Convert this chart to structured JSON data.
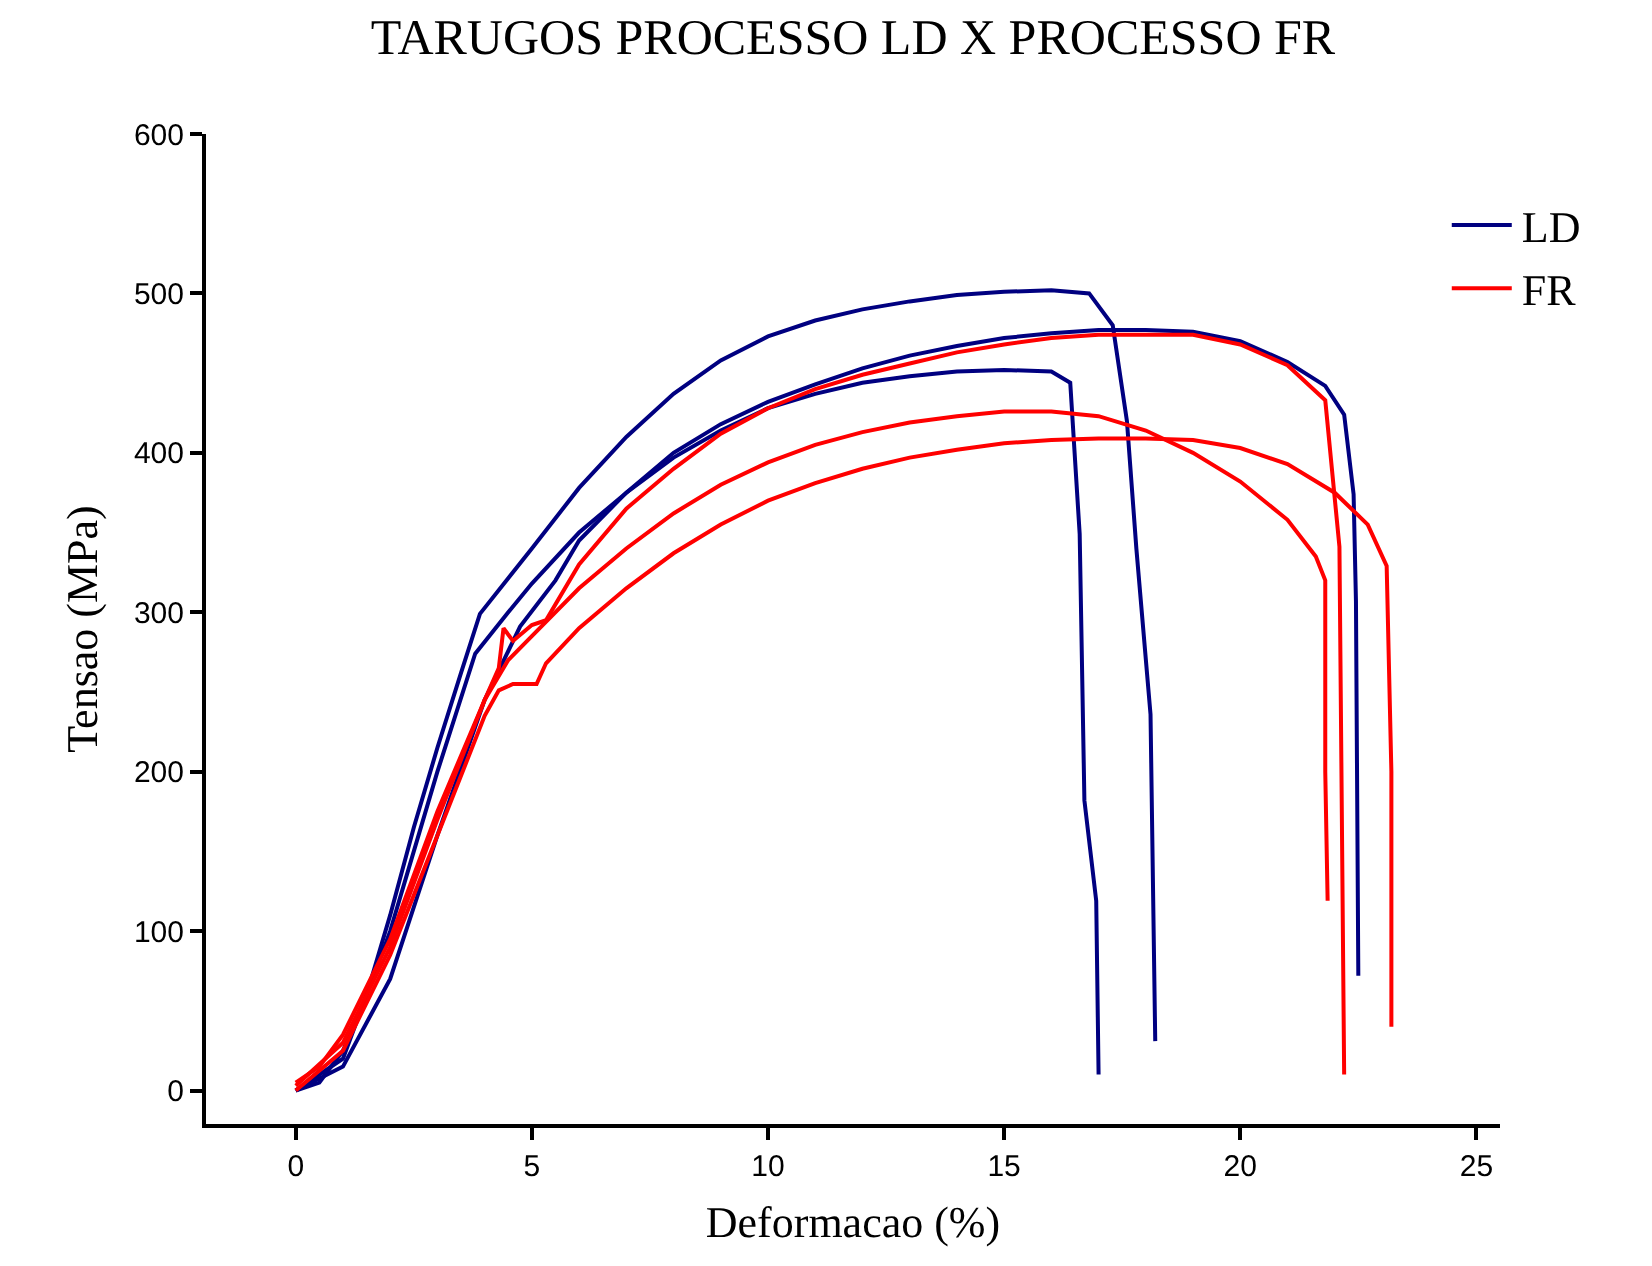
{
  "chart_data": {
    "type": "line",
    "title": "TARUGOS PROCESSO LD X PROCESSO FR",
    "xlabel": "Deformacao (%)",
    "ylabel": "Tensao (MPa)",
    "xlim": [
      -1.9,
      25.5
    ],
    "xticks": [
      0,
      5,
      10,
      15,
      20,
      25
    ],
    "ylim": [
      -21,
      600
    ],
    "yticks": [
      0,
      100,
      200,
      300,
      400,
      500,
      600
    ],
    "grid": false,
    "legend": "top right",
    "marker": "none",
    "line_style": "solid",
    "series": [
      {
        "name": "LD",
        "color": "#000080",
        "x": [
          0,
          0.5,
          1,
          1.5,
          2,
          2.5,
          3,
          3.5,
          3.9,
          5,
          6,
          7,
          8,
          9,
          10,
          11,
          12,
          13,
          14,
          15,
          16,
          16.8,
          17.3,
          17.6,
          17.8,
          18.1,
          18.2
        ],
        "values": [
          0,
          5,
          25,
          60,
          110,
          165,
          215,
          262,
          299,
          340,
          378,
          410,
          437,
          458,
          473,
          483,
          490,
          495,
          499,
          501,
          502,
          500,
          480,
          420,
          340,
          236,
          31
        ]
      },
      {
        "color": "#000080",
        "x": [
          0,
          1,
          2,
          3,
          3.8,
          4.5,
          5,
          6,
          7,
          8,
          9,
          10,
          11,
          12,
          13,
          14,
          15,
          16,
          16.4,
          16.6,
          16.7,
          16.95,
          17.0
        ],
        "values": [
          0,
          20,
          100,
          200,
          274,
          300,
          318,
          350,
          375,
          397,
          414,
          428,
          437,
          444,
          448,
          451,
          452,
          451,
          444,
          349,
          182,
          119,
          10
        ]
      },
      {
        "color": "#000080",
        "x": [
          0,
          1,
          2,
          3,
          4,
          4.75,
          5.5,
          6,
          7,
          8,
          9,
          10,
          11,
          12,
          13,
          14,
          15,
          16,
          17,
          18,
          19,
          20,
          21,
          21.8,
          22.2,
          22.4,
          22.45,
          22.5
        ],
        "values": [
          0,
          15,
          70,
          160,
          245,
          291,
          320,
          345,
          375,
          400,
          418,
          432,
          443,
          453,
          461,
          467,
          472,
          475,
          477,
          477,
          476,
          470,
          457,
          442,
          424,
          374,
          307,
          72
        ]
      },
      {
        "name": "FR",
        "color": "#ff0000",
        "x": [
          0,
          0.5,
          1,
          2,
          3,
          4,
          4.3,
          4.4,
          4.6,
          5.0,
          5.3,
          6,
          7,
          8,
          9,
          10,
          11,
          12,
          13,
          14,
          15,
          16,
          17,
          18,
          19,
          20,
          21,
          21.8,
          22.1,
          22.2
        ],
        "values": [
          5,
          15,
          35,
          95,
          175,
          245,
          265,
          290,
          282,
          292,
          295,
          330,
          365,
          390,
          412,
          428,
          440,
          449,
          456,
          463,
          468,
          472,
          474,
          474,
          474,
          468,
          455,
          433,
          341,
          10
        ]
      },
      {
        "color": "#ff0000",
        "x": [
          0,
          1,
          2,
          3,
          4,
          4.5,
          5,
          6,
          7,
          8,
          9,
          10,
          11,
          12,
          13,
          14,
          15,
          16,
          17,
          18,
          19,
          20,
          21,
          21.6,
          21.8,
          21.8,
          21.85
        ],
        "values": [
          3,
          30,
          90,
          170,
          245,
          270,
          285,
          315,
          340,
          362,
          380,
          394,
          405,
          413,
          419,
          423,
          426,
          426,
          423,
          414,
          400,
          382,
          358,
          335,
          320,
          200,
          119
        ]
      },
      {
        "color": "#ff0000",
        "x": [
          0,
          1,
          2,
          3,
          4,
          4.3,
          4.6,
          5.1,
          5.3,
          6,
          7,
          8,
          9,
          10,
          11,
          12,
          13,
          14,
          15,
          16,
          17,
          18,
          19,
          20,
          21,
          22,
          22.7,
          23.1,
          23.2,
          23.2
        ],
        "values": [
          0,
          25,
          85,
          160,
          235,
          251,
          255,
          255,
          268,
          290,
          315,
          337,
          355,
          370,
          381,
          390,
          397,
          402,
          406,
          408,
          409,
          409,
          408,
          403,
          393,
          375,
          355,
          329,
          200,
          40
        ]
      }
    ]
  }
}
